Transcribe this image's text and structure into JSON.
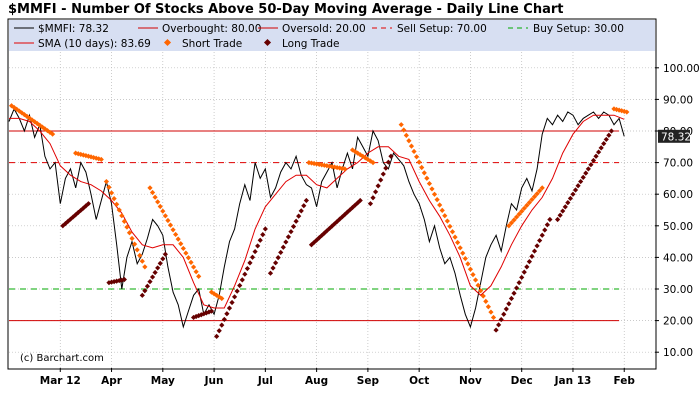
{
  "chart_data": {
    "type": "line",
    "title": "$MMFI - Number Of Stocks Above 50-Day Moving Average - Daily Line Chart",
    "credit": "(c) Barchart.com",
    "ylim": [
      5,
      105
    ],
    "yticks": [
      "100.00",
      "90.00",
      "80.00",
      "70.00",
      "60.00",
      "50.00",
      "40.00",
      "30.00",
      "20.00",
      "10.00"
    ],
    "ytick_values": [
      100,
      90,
      80,
      70,
      60,
      50,
      40,
      30,
      20,
      10
    ],
    "xticks": [
      "Mar 12",
      "Apr",
      "May",
      "Jun",
      "Jul",
      "Aug",
      "Sep",
      "Oct",
      "Nov",
      "Dec",
      "Jan 13",
      "Feb"
    ],
    "xtick_positions": [
      2.0,
      3.0,
      4.0,
      5.0,
      6.0,
      7.0,
      8.0,
      9.0,
      10.0,
      11.0,
      12.0,
      13.0
    ],
    "xlim": [
      1.0,
      13.6
    ],
    "grid": true,
    "legend_placement": "top",
    "last_value_label": "78.32",
    "last_value": 78.32,
    "colors": {
      "plot_bg": "#ffffff",
      "series": "#000000",
      "sma": "#e00000",
      "overbought": "#d00000",
      "oversold": "#d00000",
      "sell_setup": "#e00000",
      "buy_setup": "#00aa00",
      "short_trade": "#ff6600",
      "long_trade": "#660000",
      "grid": "#b8b8b8",
      "badge": "#222222"
    },
    "legend": [
      {
        "key": "main",
        "label": "$MMFI: 78.32"
      },
      {
        "key": "overbought",
        "label": "Overbought: 80.00"
      },
      {
        "key": "oversold",
        "label": "Oversold: 20.00"
      },
      {
        "key": "sell",
        "label": "Sell Setup: 70.00"
      },
      {
        "key": "buy",
        "label": "Buy Setup: 30.00"
      },
      {
        "key": "sma",
        "label": "SMA (10 days): 83.69"
      },
      {
        "key": "short",
        "label": "Short Trade"
      },
      {
        "key": "long",
        "label": "Long Trade"
      }
    ],
    "hlines": [
      {
        "name": "Overbought",
        "value": 80,
        "style": "solid",
        "color": "#d00000"
      },
      {
        "name": "Oversold",
        "value": 20,
        "style": "solid",
        "color": "#d00000"
      },
      {
        "name": "Sell Setup",
        "value": 70,
        "style": "dash",
        "color": "#e00000"
      },
      {
        "name": "Buy Setup",
        "value": 30,
        "style": "dash",
        "color": "#00aa00"
      }
    ],
    "series": [
      {
        "name": "$MMFI",
        "x": [
          1.0,
          1.1,
          1.2,
          1.3,
          1.4,
          1.5,
          1.6,
          1.7,
          1.8,
          1.9,
          2.0,
          2.1,
          2.2,
          2.3,
          2.4,
          2.5,
          2.6,
          2.7,
          2.8,
          2.9,
          3.0,
          3.1,
          3.2,
          3.3,
          3.4,
          3.5,
          3.6,
          3.7,
          3.8,
          3.9,
          4.0,
          4.1,
          4.2,
          4.3,
          4.4,
          4.5,
          4.6,
          4.7,
          4.8,
          4.9,
          5.0,
          5.1,
          5.2,
          5.3,
          5.4,
          5.5,
          5.6,
          5.7,
          5.8,
          5.9,
          6.0,
          6.1,
          6.2,
          6.3,
          6.4,
          6.5,
          6.6,
          6.7,
          6.8,
          6.9,
          7.0,
          7.1,
          7.2,
          7.3,
          7.4,
          7.5,
          7.6,
          7.7,
          7.8,
          7.9,
          8.0,
          8.1,
          8.2,
          8.3,
          8.4,
          8.5,
          8.6,
          8.7,
          8.8,
          8.9,
          9.0,
          9.1,
          9.2,
          9.3,
          9.4,
          9.5,
          9.6,
          9.7,
          9.8,
          9.9,
          10.0,
          10.1,
          10.2,
          10.3,
          10.4,
          10.5,
          10.6,
          10.7,
          10.8,
          10.9,
          11.0,
          11.1,
          11.2,
          11.3,
          11.4,
          11.5,
          11.6,
          11.7,
          11.8,
          11.9,
          12.0,
          12.1,
          12.2,
          12.3,
          12.4,
          12.5,
          12.6,
          12.7,
          12.8,
          12.9,
          13.0
        ],
        "y": [
          83,
          87,
          84,
          80,
          85,
          78,
          82,
          72,
          68,
          70,
          57,
          65,
          68,
          62,
          70,
          67,
          60,
          52,
          58,
          64,
          57,
          44,
          30,
          40,
          45,
          38,
          41,
          46,
          52,
          50,
          47,
          37,
          29,
          25,
          18,
          23,
          28,
          30,
          22,
          25,
          22,
          28,
          37,
          45,
          49,
          57,
          63,
          58,
          70,
          65,
          68,
          59,
          62,
          67,
          70,
          68,
          72,
          66,
          63,
          62,
          56,
          64,
          67,
          70,
          62,
          68,
          73,
          68,
          78,
          75,
          72,
          80,
          77,
          70,
          68,
          73,
          71,
          69,
          64,
          60,
          57,
          52,
          45,
          50,
          43,
          38,
          40,
          35,
          28,
          22,
          18,
          24,
          32,
          40,
          44,
          47,
          42,
          50,
          57,
          55,
          62,
          65,
          61,
          68,
          79,
          84,
          82,
          85,
          83,
          86,
          85,
          82,
          84,
          85,
          86,
          84,
          86,
          85,
          82,
          84,
          78.32
        ]
      },
      {
        "name": "SMA (10 days)",
        "x": [
          1.0,
          1.2,
          1.4,
          1.6,
          1.8,
          2.0,
          2.2,
          2.4,
          2.6,
          2.8,
          3.0,
          3.2,
          3.4,
          3.6,
          3.8,
          4.0,
          4.2,
          4.4,
          4.6,
          4.8,
          5.0,
          5.2,
          5.4,
          5.6,
          5.8,
          6.0,
          6.2,
          6.4,
          6.6,
          6.8,
          7.0,
          7.2,
          7.4,
          7.6,
          7.8,
          8.0,
          8.2,
          8.4,
          8.6,
          8.8,
          9.0,
          9.2,
          9.4,
          9.6,
          9.8,
          10.0,
          10.2,
          10.4,
          10.6,
          10.8,
          11.0,
          11.2,
          11.4,
          11.6,
          11.8,
          12.0,
          12.2,
          12.4,
          12.6,
          12.8,
          13.0
        ],
        "y": [
          84,
          84,
          83,
          80,
          76,
          69,
          66,
          64,
          63,
          61,
          58,
          54,
          48,
          44,
          43,
          44,
          44,
          40,
          32,
          25,
          24,
          24,
          31,
          39,
          49,
          56,
          60,
          64,
          66,
          66,
          63,
          62,
          65,
          68,
          70,
          73,
          75,
          75,
          72,
          71,
          64,
          58,
          53,
          47,
          40,
          31,
          28,
          31,
          37,
          44,
          50,
          55,
          59,
          65,
          73,
          79,
          83,
          85,
          85,
          85,
          83.69
        ]
      }
    ],
    "short_trades": [
      {
        "x_start": 1.05,
        "x_end": 1.85,
        "y_start": 88,
        "y_end": 79
      },
      {
        "x_start": 2.3,
        "x_end": 2.8,
        "y_start": 73,
        "y_end": 71
      },
      {
        "x_start": 2.9,
        "x_end": 3.65,
        "y_start": 64,
        "y_end": 37
      },
      {
        "x_start": 3.75,
        "x_end": 4.7,
        "y_start": 62,
        "y_end": 34
      },
      {
        "x_start": 4.95,
        "x_end": 5.15,
        "y_start": 29,
        "y_end": 27
      },
      {
        "x_start": 6.85,
        "x_end": 7.55,
        "y_start": 70,
        "y_end": 68
      },
      {
        "x_start": 7.7,
        "x_end": 8.1,
        "y_start": 74,
        "y_end": 70
      },
      {
        "x_start": 8.65,
        "x_end": 10.45,
        "y_start": 82,
        "y_end": 21
      },
      {
        "x_start": 10.75,
        "x_end": 11.4,
        "y_start": 50,
        "y_end": 62
      },
      {
        "x_start": 12.8,
        "x_end": 13.05,
        "y_start": 87,
        "y_end": 86
      }
    ],
    "long_trades": [
      {
        "x_start": 2.05,
        "x_end": 2.55,
        "y_start": 50,
        "y_end": 57
      },
      {
        "x_start": 2.95,
        "x_end": 3.25,
        "y_start": 32,
        "y_end": 33
      },
      {
        "x_start": 3.6,
        "x_end": 4.05,
        "y_start": 28,
        "y_end": 41
      },
      {
        "x_start": 4.6,
        "x_end": 4.95,
        "y_start": 21,
        "y_end": 23
      },
      {
        "x_start": 5.05,
        "x_end": 6.0,
        "y_start": 15,
        "y_end": 49
      },
      {
        "x_start": 6.1,
        "x_end": 6.8,
        "y_start": 35,
        "y_end": 58
      },
      {
        "x_start": 6.9,
        "x_end": 7.85,
        "y_start": 44,
        "y_end": 58
      },
      {
        "x_start": 8.05,
        "x_end": 8.45,
        "y_start": 57,
        "y_end": 72
      },
      {
        "x_start": 10.5,
        "x_end": 11.55,
        "y_start": 17,
        "y_end": 52
      },
      {
        "x_start": 11.7,
        "x_end": 12.75,
        "y_start": 52,
        "y_end": 80
      }
    ]
  }
}
